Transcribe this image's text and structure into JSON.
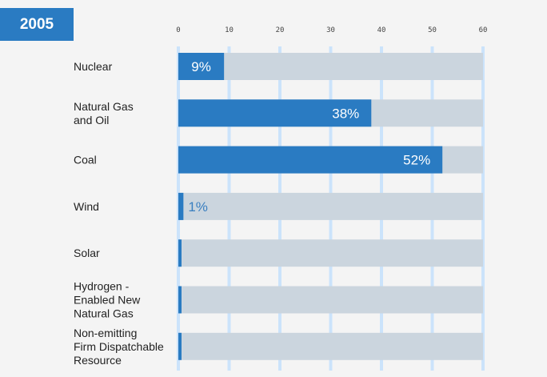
{
  "year_label": "2005",
  "colors": {
    "fill": "#2a7bc2",
    "track": "#cbd5de",
    "grid": "#cbe3fb",
    "label_inside": "#ffffff",
    "label_outside": "#3a7fc0"
  },
  "chart_data": {
    "type": "bar",
    "orientation": "horizontal",
    "title": "2005",
    "xlabel": "",
    "ylabel": "",
    "xlim": [
      0,
      60
    ],
    "xticks": [
      0,
      10,
      20,
      30,
      40,
      50,
      60
    ],
    "grid": true,
    "categories": [
      [
        "Nuclear"
      ],
      [
        "Natural Gas",
        "and Oil"
      ],
      [
        "Coal"
      ],
      [
        "Wind"
      ],
      [
        "Solar"
      ],
      [
        "Hydrogen -",
        "Enabled New",
        "Natural Gas"
      ],
      [
        "Non-emitting",
        "Firm Dispatchable",
        "Resource"
      ]
    ],
    "values": [
      9,
      38,
      52,
      1,
      0.3,
      0.3,
      0.3
    ],
    "data_labels": [
      "9%",
      "38%",
      "52%",
      "1%",
      "",
      "",
      ""
    ]
  }
}
